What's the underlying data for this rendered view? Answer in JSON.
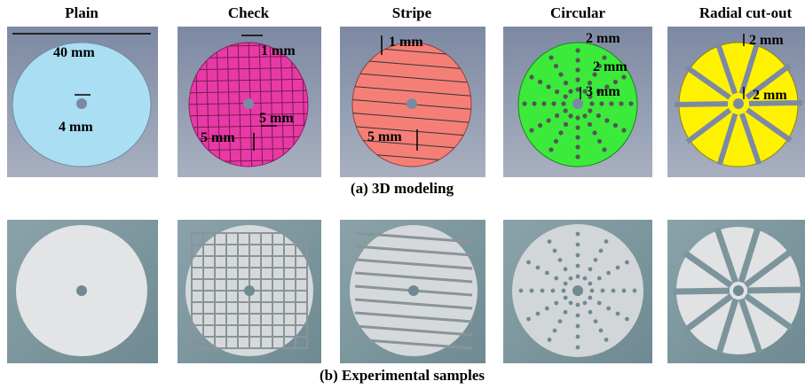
{
  "columns": [
    {
      "title": "Plain",
      "labels": [
        "40 mm",
        "4 mm"
      ]
    },
    {
      "title": "Check",
      "labels": [
        "1 mm",
        "5 mm",
        "5 mm"
      ]
    },
    {
      "title": "Stripe",
      "labels": [
        "1 mm",
        "5 mm"
      ]
    },
    {
      "title": "Circular",
      "labels": [
        "2 mm",
        "2 mm",
        "3 mm"
      ]
    },
    {
      "title": "Radial cut-out",
      "labels": [
        "2 mm",
        "2 mm"
      ]
    }
  ],
  "captions": {
    "modeling": "(a) 3D modeling",
    "samples": "(b) Experimental samples"
  }
}
